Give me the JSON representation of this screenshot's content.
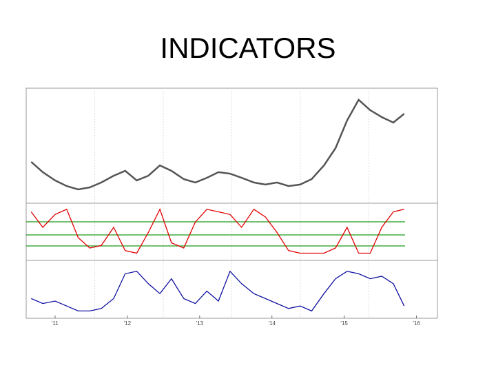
{
  "title": "INDICATORS",
  "chart_data": [
    {
      "type": "line",
      "color": "#555555",
      "x": [
        2010.67,
        2010.83,
        2011.0,
        2011.16,
        2011.32,
        2011.48,
        2011.64,
        2011.81,
        2011.97,
        2012.13,
        2012.29,
        2012.45,
        2012.61,
        2012.78,
        2012.94,
        2013.1,
        2013.26,
        2013.42,
        2013.58,
        2013.75,
        2013.91,
        2014.07,
        2014.23,
        2014.39,
        2014.55,
        2014.72,
        2014.88,
        2015.04,
        2015.2,
        2015.36,
        2015.52,
        2015.68,
        2015.83
      ],
      "values": [
        36.7,
        26.7,
        18.7,
        13.3,
        10,
        12,
        16.7,
        23.3,
        28,
        18.7,
        23.3,
        33.3,
        28,
        20,
        16.7,
        21.3,
        26.7,
        25.3,
        21.3,
        16.7,
        14.7,
        16.7,
        13.3,
        14.7,
        20,
        33.3,
        50,
        76.7,
        96.7,
        86.7,
        80,
        74.7,
        83.3
      ],
      "xlim": [
        2010.6,
        2016.29
      ],
      "ylim": [
        0,
        100
      ],
      "grid": true
    },
    {
      "type": "line",
      "color": "#e00000",
      "x": [
        2010.67,
        2010.83,
        2011.0,
        2011.16,
        2011.32,
        2011.48,
        2011.64,
        2011.81,
        2011.97,
        2012.13,
        2012.29,
        2012.45,
        2012.61,
        2012.78,
        2012.94,
        2013.1,
        2013.26,
        2013.42,
        2013.58,
        2013.75,
        2013.91,
        2014.07,
        2014.23,
        2014.39,
        2014.55,
        2014.72,
        2014.88,
        2015.04,
        2015.2,
        2015.36,
        2015.52,
        2015.68,
        2015.83
      ],
      "values": [
        90,
        60,
        85,
        95,
        40,
        20,
        25,
        60,
        15,
        10,
        50,
        95,
        30,
        20,
        70,
        95,
        90,
        85,
        60,
        95,
        80,
        50,
        15,
        10,
        10,
        10,
        20,
        60,
        10,
        10,
        60,
        90,
        95
      ],
      "hlines": [
        70.7,
        45.3,
        24
      ],
      "hline_color": "#1a9a1a",
      "xlim": [
        2010.6,
        2016.29
      ],
      "ylim": [
        0,
        100
      ],
      "grid": true
    },
    {
      "type": "line",
      "color": "#1010a0",
      "x": [
        2010.67,
        2010.83,
        2011.0,
        2011.16,
        2011.32,
        2011.48,
        2011.64,
        2011.81,
        2011.97,
        2012.13,
        2012.29,
        2012.45,
        2012.61,
        2012.78,
        2012.94,
        2013.1,
        2013.26,
        2013.42,
        2013.58,
        2013.75,
        2013.91,
        2014.07,
        2014.23,
        2014.39,
        2014.55,
        2014.72,
        2014.88,
        2015.04,
        2015.2,
        2015.36,
        2015.52,
        2015.68,
        2015.83
      ],
      "values": [
        30,
        20,
        25,
        15,
        5,
        5,
        10,
        30,
        80,
        85,
        60,
        40,
        70,
        30,
        20,
        45,
        25,
        85,
        60,
        40,
        30,
        20,
        10,
        15,
        5,
        40,
        70,
        85,
        80,
        70,
        75,
        60,
        15
      ],
      "xlim": [
        2010.6,
        2016.29
      ],
      "ylim": [
        0,
        100
      ],
      "grid": true,
      "xticks": [
        {
          "value": 2011,
          "label": "'11"
        },
        {
          "value": 2012,
          "label": "'12"
        },
        {
          "value": 2013,
          "label": "'13"
        },
        {
          "value": 2014,
          "label": "'14"
        },
        {
          "value": 2015,
          "label": "'15"
        },
        {
          "value": 2016,
          "label": "'16"
        }
      ]
    }
  ]
}
